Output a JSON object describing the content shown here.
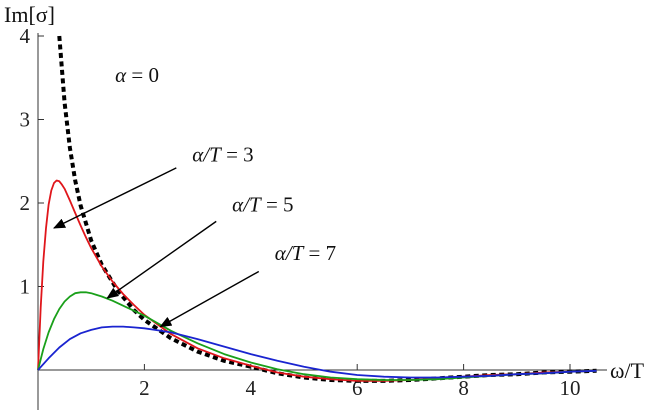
{
  "chart_data": {
    "type": "line",
    "title": "",
    "xlabel": "ω/T",
    "ylabel": "Im[σ]",
    "xlim": [
      0,
      10.6
    ],
    "ylim": [
      -0.75,
      4
    ],
    "x_ticks": [
      2,
      4,
      6,
      8,
      10
    ],
    "y_ticks": [
      1,
      2,
      3,
      4
    ],
    "grid": false,
    "legend": "none",
    "series": [
      {
        "label_key": "alpha0",
        "color": "#000000",
        "style": "dashed",
        "x": [
          0.4,
          0.5,
          0.6,
          0.7,
          0.8,
          1.0,
          1.2,
          1.5,
          1.8,
          2.0,
          2.5,
          3.0,
          3.5,
          4.0,
          4.5,
          5.0,
          5.5,
          6.0,
          6.5,
          7.0,
          7.5,
          8.0,
          8.5,
          9.0,
          9.5,
          10.0,
          10.5
        ],
        "y": [
          4.0,
          3.2,
          2.66,
          2.27,
          1.97,
          1.55,
          1.26,
          0.95,
          0.72,
          0.6,
          0.38,
          0.22,
          0.11,
          0.04,
          -0.04,
          -0.09,
          -0.12,
          -0.13,
          -0.13,
          -0.12,
          -0.1,
          -0.08,
          -0.06,
          -0.05,
          -0.03,
          -0.02,
          -0.01
        ]
      },
      {
        "label_key": "a3",
        "color": "#e0161b",
        "style": "solid",
        "x": [
          0,
          0.05,
          0.1,
          0.15,
          0.2,
          0.25,
          0.3,
          0.35,
          0.4,
          0.45,
          0.5,
          0.55,
          0.6,
          0.7,
          0.8,
          0.9,
          1.0,
          1.2,
          1.4,
          1.6,
          1.8,
          2.0,
          2.5,
          3.0,
          3.5,
          4.0,
          4.5,
          5.0,
          5.5,
          6.0,
          6.5,
          7.0,
          7.5,
          8.0,
          8.5,
          9.0,
          9.5,
          10.0,
          10.5
        ],
        "y": [
          0,
          0.75,
          1.3,
          1.7,
          1.98,
          2.15,
          2.24,
          2.27,
          2.26,
          2.22,
          2.17,
          2.1,
          2.03,
          1.88,
          1.73,
          1.59,
          1.46,
          1.24,
          1.06,
          0.91,
          0.78,
          0.66,
          0.43,
          0.26,
          0.14,
          0.05,
          -0.03,
          -0.08,
          -0.11,
          -0.13,
          -0.13,
          -0.12,
          -0.1,
          -0.08,
          -0.06,
          -0.05,
          -0.03,
          -0.02,
          -0.01
        ]
      },
      {
        "label_key": "a5",
        "color": "#1aa01a",
        "style": "solid",
        "x": [
          0,
          0.1,
          0.2,
          0.3,
          0.4,
          0.5,
          0.6,
          0.7,
          0.8,
          0.9,
          1.0,
          1.1,
          1.2,
          1.4,
          1.6,
          1.8,
          2.0,
          2.5,
          3.0,
          3.5,
          4.0,
          4.5,
          5.0,
          5.5,
          6.0,
          6.5,
          7.0,
          7.5,
          8.0,
          8.5,
          9.0,
          9.5,
          10.0,
          10.5
        ],
        "y": [
          0,
          0.25,
          0.45,
          0.61,
          0.73,
          0.82,
          0.88,
          0.92,
          0.93,
          0.93,
          0.92,
          0.9,
          0.88,
          0.83,
          0.77,
          0.71,
          0.65,
          0.47,
          0.32,
          0.19,
          0.09,
          0.01,
          -0.05,
          -0.09,
          -0.11,
          -0.12,
          -0.12,
          -0.11,
          -0.09,
          -0.07,
          -0.05,
          -0.04,
          -0.02,
          -0.01
        ]
      },
      {
        "label_key": "a7",
        "color": "#1a24d0",
        "style": "solid",
        "x": [
          0,
          0.2,
          0.4,
          0.6,
          0.8,
          1.0,
          1.2,
          1.4,
          1.6,
          1.8,
          2.0,
          2.2,
          2.5,
          3.0,
          3.5,
          4.0,
          4.5,
          5.0,
          5.5,
          6.0,
          6.5,
          7.0,
          7.5,
          8.0,
          8.5,
          9.0,
          9.5,
          10.0,
          10.5
        ],
        "y": [
          0,
          0.14,
          0.27,
          0.37,
          0.44,
          0.48,
          0.51,
          0.52,
          0.52,
          0.51,
          0.5,
          0.48,
          0.45,
          0.37,
          0.28,
          0.19,
          0.11,
          0.04,
          -0.02,
          -0.06,
          -0.08,
          -0.09,
          -0.09,
          -0.08,
          -0.07,
          -0.05,
          -0.04,
          -0.02,
          -0.01
        ]
      }
    ],
    "annotations": [
      {
        "key": "alpha0",
        "text_parts": [
          "α",
          " = 0"
        ],
        "at": [
          1.45,
          3.45
        ],
        "arrow": false
      },
      {
        "key": "a3",
        "text_parts": [
          "α/T",
          " = 3"
        ],
        "at": [
          2.9,
          2.5
        ],
        "arrow_from": [
          2.6,
          2.42
        ],
        "arrow_to": [
          0.3,
          1.7
        ]
      },
      {
        "key": "a5",
        "text_parts": [
          "α/T",
          " = 5"
        ],
        "at": [
          3.65,
          1.9
        ],
        "arrow_from": [
          3.35,
          1.78
        ],
        "arrow_to": [
          1.3,
          0.86
        ]
      },
      {
        "key": "a7",
        "text_parts": [
          "α/T",
          " = 7"
        ],
        "at": [
          4.45,
          1.32
        ],
        "arrow_from": [
          4.15,
          1.18
        ],
        "arrow_to": [
          2.3,
          0.52
        ]
      }
    ]
  }
}
